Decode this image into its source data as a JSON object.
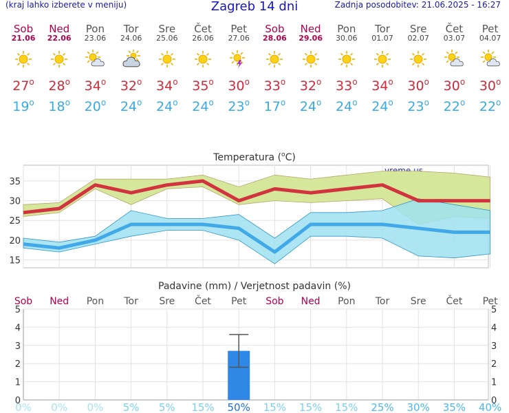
{
  "header": {
    "left_note": "(kraj lahko izberete v meniju)",
    "title": "Zagreb 14 dni",
    "updated": "Zadnja posodobitev: 21.06.2025 - 16:27"
  },
  "days": [
    {
      "name": "Sob",
      "date": "21.06",
      "weekend": true,
      "icon": "sun-icon",
      "max": "27",
      "min": "19"
    },
    {
      "name": "Ned",
      "date": "22.06",
      "weekend": true,
      "icon": "sun-icon",
      "max": "28",
      "min": "18"
    },
    {
      "name": "Pon",
      "date": "23.06",
      "weekend": false,
      "icon": "sun-cloud-icon",
      "max": "34",
      "min": "20"
    },
    {
      "name": "Tor",
      "date": "24.06",
      "weekend": false,
      "icon": "cloud-sun-icon",
      "max": "32",
      "min": "24"
    },
    {
      "name": "Sre",
      "date": "25.06",
      "weekend": false,
      "icon": "sun-icon",
      "max": "34",
      "min": "24"
    },
    {
      "name": "Čet",
      "date": "26.06",
      "weekend": false,
      "icon": "sun-icon",
      "max": "35",
      "min": "24"
    },
    {
      "name": "Pet",
      "date": "27.06",
      "weekend": false,
      "icon": "sun-storm-icon",
      "max": "30",
      "min": "23"
    },
    {
      "name": "Sob",
      "date": "28.06",
      "weekend": true,
      "icon": "sun-icon",
      "max": "33",
      "min": "17"
    },
    {
      "name": "Ned",
      "date": "29.06",
      "weekend": true,
      "icon": "sun-icon",
      "max": "32",
      "min": "24"
    },
    {
      "name": "Pon",
      "date": "30.06",
      "weekend": false,
      "icon": "sun-icon",
      "max": "33",
      "min": "24"
    },
    {
      "name": "Tor",
      "date": "01.07",
      "weekend": false,
      "icon": "sun-icon",
      "max": "34",
      "min": "24"
    },
    {
      "name": "Sre",
      "date": "02.07",
      "weekend": false,
      "icon": "sun-icon",
      "max": "30",
      "min": "23"
    },
    {
      "name": "Čet",
      "date": "03.07",
      "weekend": false,
      "icon": "sun-cloud-icon",
      "max": "30",
      "min": "22"
    },
    {
      "name": "Pet",
      "date": "04.07",
      "weekend": false,
      "icon": "sun-cloud-icon",
      "max": "30",
      "min": "22"
    }
  ],
  "degree_sign": "o",
  "colors": {
    "max_line": "#d1343f",
    "min_line": "#42a9e8",
    "max_band": "#d4e79a",
    "min_band": "#9fe2f0",
    "overlap_band": "#7ccf7a",
    "weekend": "#b0004e",
    "bar": "#2f87e6"
  },
  "chart_data": [
    {
      "type": "line",
      "title": "Temperatura (",
      "title_unit": "C)",
      "title_deg": "o",
      "watermark": "vreme.us",
      "ylim": [
        13,
        39
      ],
      "yticks": [
        "15",
        "20",
        "25",
        "30",
        "35"
      ],
      "grid": true,
      "series": [
        {
          "values": [
            27,
            28,
            34,
            32,
            34,
            35,
            30,
            33,
            32,
            33,
            34,
            30,
            30,
            30
          ]
        },
        {
          "values": [
            19,
            18,
            20,
            24,
            24,
            24,
            23,
            17,
            24,
            24,
            24,
            23,
            22,
            22
          ]
        }
      ],
      "max_band_high": [
        29,
        29.5,
        35.5,
        35.5,
        35.5,
        36.5,
        33.5,
        36.5,
        35.5,
        36.5,
        37.5,
        37.5,
        37,
        36
      ],
      "max_band_low": [
        26,
        27,
        33,
        29,
        33,
        33.5,
        29,
        30,
        29.5,
        30,
        30.5,
        24,
        26,
        25.5
      ],
      "min_band_high": [
        20.5,
        19.5,
        21,
        27.5,
        25.5,
        25.5,
        26.5,
        20.5,
        27,
        27,
        27.5,
        30.5,
        29,
        27.5
      ],
      "min_band_low": [
        18,
        17,
        19,
        21,
        22.5,
        22.5,
        20,
        14,
        21,
        21,
        20.5,
        16,
        15.5,
        16.5
      ]
    },
    {
      "type": "bar",
      "title": "Padavine (mm) / Verjetnost padavin (%)",
      "ylim": [
        0,
        5
      ],
      "yticks": [
        "0",
        "1",
        "2",
        "3",
        "4",
        "5"
      ],
      "values": [
        0,
        0,
        0,
        0,
        0,
        0,
        2.7,
        0,
        0,
        0,
        0,
        0,
        0,
        0
      ],
      "error_high": [
        null,
        null,
        null,
        null,
        null,
        null,
        3.6,
        null,
        null,
        null,
        null,
        null,
        null,
        null
      ],
      "error_low": [
        null,
        null,
        null,
        null,
        null,
        null,
        1.8,
        null,
        null,
        null,
        null,
        null,
        null,
        null
      ],
      "probabilities": [
        "0%",
        "0%",
        "0%",
        "5%",
        "5%",
        "15%",
        "50%",
        "15%",
        "15%",
        "15%",
        "25%",
        "30%",
        "35%",
        "40%"
      ]
    }
  ]
}
